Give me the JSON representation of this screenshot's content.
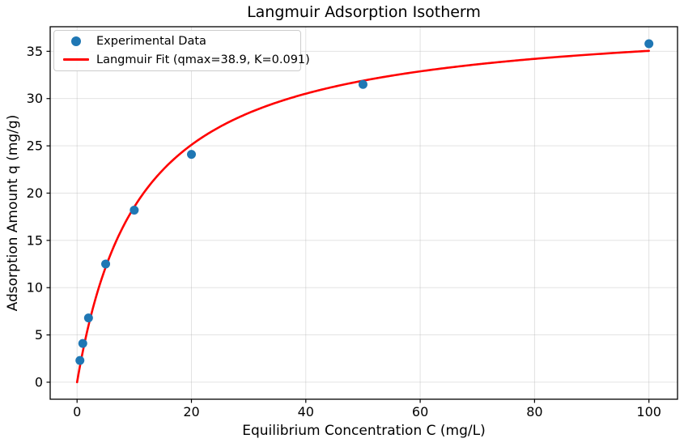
{
  "figure": {
    "background": "#ffffff",
    "text_color": "#000000",
    "spine_color": "#000000",
    "grid_color": "#b0b0b0"
  },
  "chart_data": {
    "type": "scatter",
    "title": "Langmuir Adsorption Isotherm",
    "xlabel": "Equilibrium Concentration C (mg/L)",
    "ylabel": "Adsorption Amount q (mg/g)",
    "xlim": [
      -4.7,
      105.0
    ],
    "ylim": [
      -1.8,
      37.6
    ],
    "xticks": [
      0,
      20,
      40,
      60,
      80,
      100
    ],
    "yticks": [
      0,
      5,
      10,
      15,
      20,
      25,
      30,
      35
    ],
    "grid": true,
    "legend_position": "upper-left",
    "series": [
      {
        "name": "Experimental Data",
        "type": "scatter",
        "color": "#1f77b4",
        "marker": "circle",
        "x": [
          0.5,
          1,
          2,
          5,
          10,
          20,
          50,
          100
        ],
        "y": [
          2.3,
          4.1,
          6.8,
          12.5,
          18.2,
          24.1,
          31.5,
          35.8
        ]
      },
      {
        "name": "Langmuir Fit (qmax=38.9, K=0.091)",
        "type": "line",
        "color": "#ff0000",
        "model": "langmuir",
        "qmax": 38.9,
        "K": 0.091,
        "x_range": [
          0,
          100
        ]
      }
    ]
  }
}
